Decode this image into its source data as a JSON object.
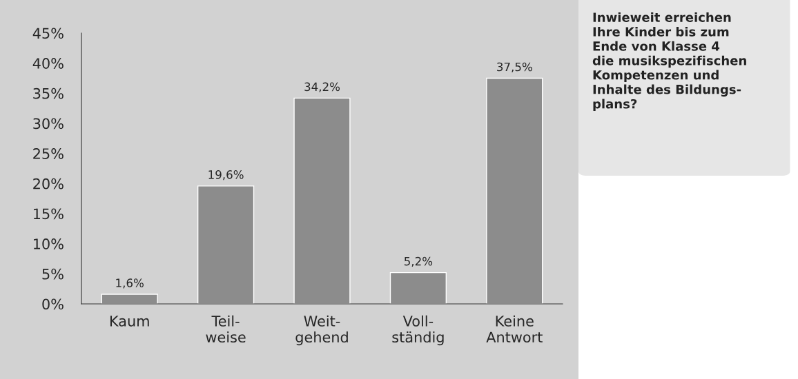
{
  "chart_data": {
    "type": "bar",
    "title": "Inwieweit erreichen\nIhre Kinder bis zum\nEnde von Klasse 4\ndie musikspezifischen\nKompetenzen und\nInhalte des Bildungs-\nplans?",
    "categories": [
      "Kaum",
      "Teil-\nweise",
      "Weit-\ngehend",
      "Voll-\nständig",
      "Keine\nAntwort"
    ],
    "values": [
      1.6,
      19.6,
      34.2,
      5.2,
      37.5
    ],
    "value_labels": [
      "1,6%",
      "19,6%",
      "34,2%",
      "5,2%",
      "37,5%"
    ],
    "color": "#8c8c8c",
    "ylim": [
      0,
      45
    ],
    "yticks": [
      {
        "value": 0,
        "label": "0%"
      },
      {
        "value": 5,
        "label": "5%"
      },
      {
        "value": 10,
        "label": "10%"
      },
      {
        "value": 15,
        "label": "15%"
      },
      {
        "value": 20,
        "label": "20%"
      },
      {
        "value": 25,
        "label": "25%"
      },
      {
        "value": 30,
        "label": "30%"
      },
      {
        "value": 35,
        "label": "35%"
      },
      {
        "value": 40,
        "label": "40%"
      },
      {
        "value": 45,
        "label": "45%"
      }
    ],
    "grid": false
  }
}
